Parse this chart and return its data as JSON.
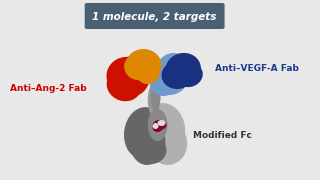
{
  "background_color": "#e8e8e8",
  "title_text": "1 molecule, 2 targets",
  "title_box_color": "#4a5f72",
  "title_text_color": "#ffffff",
  "label_ang2_text": "Anti–Ang-2 Fab",
  "label_ang2_color": "#cc0000",
  "label_vegf_text": "Anti–VEGF-A Fab",
  "label_vegf_color": "#1a3a8a",
  "label_fc_text": "Modified Fc",
  "label_fc_color": "#333333",
  "red_color": "#cc1100",
  "orange_color": "#dd8800",
  "dark_blue_color": "#1a3080",
  "light_blue_color": "#7099cc",
  "dark_gray_color": "#666666",
  "mid_gray_color": "#888888",
  "light_gray_color": "#b0b0b0",
  "stem_gray_color": "#999999",
  "red_detail_color": "#880022",
  "white_detail_color": "#dddddd"
}
